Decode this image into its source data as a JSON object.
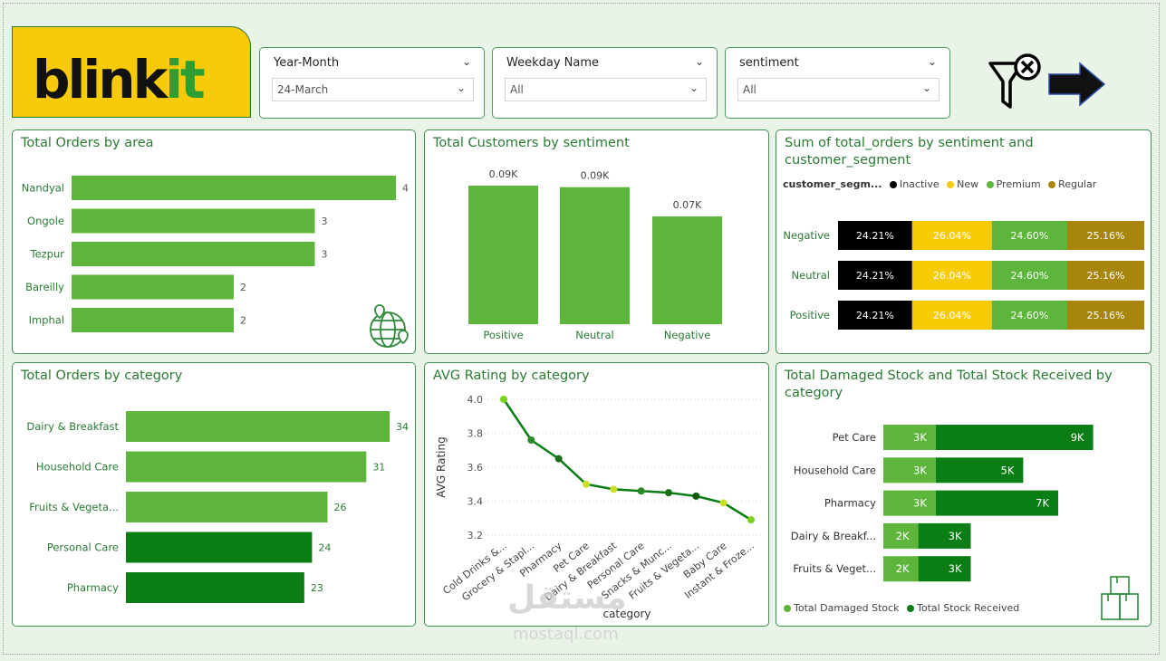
{
  "brand": {
    "name": "blinkit",
    "color_dark": "#111111",
    "color_accent": "#2e9e32",
    "bg": "#f8cb0a"
  },
  "slicers": [
    {
      "title": "Year-Month",
      "value": "24-March"
    },
    {
      "title": "Weekday Name",
      "value": "All"
    },
    {
      "title": "sentiment",
      "value": "All"
    }
  ],
  "toolbar": {
    "clear_filter_icon": "filter-clear-icon",
    "next_icon": "arrow-right-icon"
  },
  "colors": {
    "primary": "#5db53c",
    "dark": "#0a7d14",
    "black": "#000000",
    "yellow": "#f7cc06",
    "olive": "#a8860b",
    "title": "#2a7a34"
  },
  "chart_data": [
    {
      "id": "orders_by_area",
      "type": "bar",
      "orientation": "horizontal",
      "title": "Total Orders by area",
      "categories": [
        "Nandyal",
        "Ongole",
        "Tezpur",
        "Bareilly",
        "Imphal"
      ],
      "values": [
        4,
        3,
        3,
        2,
        2
      ],
      "value_labels": [
        "4",
        "3",
        "3",
        "2",
        "2"
      ],
      "xlim": [
        0,
        4
      ],
      "icon": "globe-location-icon"
    },
    {
      "id": "customers_by_sentiment",
      "type": "bar",
      "orientation": "vertical",
      "title": "Total Customers by sentiment",
      "categories": [
        "Positive",
        "Neutral",
        "Negative"
      ],
      "values": [
        90,
        89,
        70
      ],
      "value_labels": [
        "0.09K",
        "0.09K",
        "0.07K"
      ],
      "ylim": [
        0,
        100
      ]
    },
    {
      "id": "orders_by_sentiment_segment",
      "type": "bar",
      "orientation": "horizontal",
      "stacked": true,
      "title": "Sum of total_orders by sentiment and customer_segment",
      "legend_title": "customer_segm...",
      "categories": [
        "Negative",
        "Neutral",
        "Positive"
      ],
      "series": [
        {
          "name": "Inactive",
          "color": "#000000",
          "values": [
            24.21,
            24.21,
            24.21
          ],
          "labels": [
            "24.21%",
            "24.21%",
            "24.21%"
          ]
        },
        {
          "name": "New",
          "color": "#f7cc06",
          "values": [
            26.04,
            26.04,
            26.04
          ],
          "labels": [
            "26.04%",
            "26.04%",
            "26.04%"
          ]
        },
        {
          "name": "Premium",
          "color": "#5db53c",
          "values": [
            24.6,
            24.6,
            24.6
          ],
          "labels": [
            "24.60%",
            "24.60%",
            "24.60%"
          ]
        },
        {
          "name": "Regular",
          "color": "#a8860b",
          "values": [
            25.16,
            25.16,
            25.16
          ],
          "labels": [
            "25.16%",
            "25.16%",
            "25.16%"
          ]
        }
      ]
    },
    {
      "id": "orders_by_category",
      "type": "bar",
      "orientation": "horizontal",
      "title": "Total Orders by category",
      "categories": [
        "Dairy & Breakfast",
        "Household Care",
        "Fruits & Vegeta...",
        "Personal Care",
        "Pharmacy"
      ],
      "values": [
        34,
        31,
        26,
        24,
        23
      ],
      "value_labels": [
        "34",
        "31",
        "26",
        "24",
        "23"
      ],
      "bar_colors": [
        "#5db53c",
        "#5db53c",
        "#5db53c",
        "#0a7d14",
        "#0a7d14"
      ],
      "xlim": [
        0,
        34
      ]
    },
    {
      "id": "avg_rating_by_category",
      "type": "line",
      "title": "AVG Rating by category",
      "xlabel": "category",
      "ylabel": "AVG Rating",
      "categories": [
        "Cold Drinks &...",
        "Grocery & Stapl...",
        "Pharmacy",
        "Pet Care",
        "Dairy & Breakfast",
        "Personal Care",
        "Snacks & Munc...",
        "Fruits & Vegeta...",
        "Baby Care",
        "Instant & Froze..."
      ],
      "values": [
        4.0,
        3.76,
        3.65,
        3.5,
        3.47,
        3.46,
        3.45,
        3.43,
        3.39,
        3.29
      ],
      "ylim": [
        3.2,
        4.0
      ],
      "yticks": [
        "4.0",
        "3.8",
        "3.6",
        "3.4",
        "3.2"
      ],
      "grid": true
    },
    {
      "id": "damaged_vs_received_by_category",
      "type": "bar",
      "orientation": "horizontal",
      "stacked": true,
      "title": "Total Damaged Stock and Total Stock Received by category",
      "categories": [
        "Pet Care",
        "Household Care",
        "Pharmacy",
        "Dairy & Breakf...",
        "Fruits & Veget..."
      ],
      "series": [
        {
          "name": "Total Damaged Stock",
          "color": "#5db53c",
          "values": [
            3,
            3,
            3,
            2,
            2
          ],
          "labels": [
            "3K",
            "3K",
            "3K",
            "2K",
            "2K"
          ]
        },
        {
          "name": "Total Stock Received",
          "color": "#0a7d14",
          "values": [
            9,
            5,
            7,
            3,
            3
          ],
          "labels": [
            "9K",
            "5K",
            "7K",
            "3K",
            "3K"
          ]
        }
      ],
      "legend_position": "bottom",
      "icon": "boxes-icon"
    }
  ],
  "watermark": {
    "text": "مستقل",
    "subtext": "mostaql.com"
  }
}
